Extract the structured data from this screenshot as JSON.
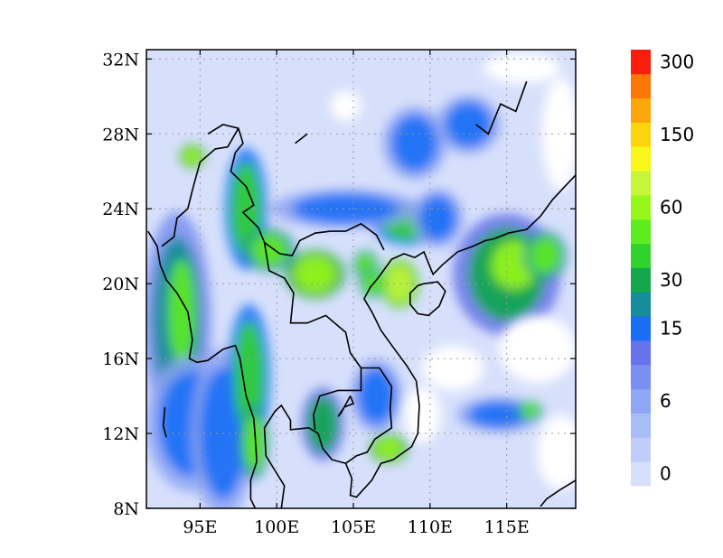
{
  "map": {
    "lon_range": [
      91.5,
      119.5
    ],
    "lat_range": [
      8,
      32.5
    ],
    "lon_ticks": [
      {
        "value": 95,
        "label": "95E"
      },
      {
        "value": 100,
        "label": "100E"
      },
      {
        "value": 105,
        "label": "105E"
      },
      {
        "value": 110,
        "label": "110E"
      },
      {
        "value": 115,
        "label": "115E"
      }
    ],
    "lat_ticks": [
      {
        "value": 8,
        "label": "8N"
      },
      {
        "value": 12,
        "label": "12N"
      },
      {
        "value": 16,
        "label": "16N"
      },
      {
        "value": 20,
        "label": "20N"
      },
      {
        "value": 24,
        "label": "24N"
      },
      {
        "value": 28,
        "label": "28N"
      },
      {
        "value": 32,
        "label": "32N"
      }
    ],
    "grid": "dotted",
    "fill_color_background": "#ffffff"
  },
  "colorbar": {
    "colors": [
      "#d7e0fb",
      "#c0cdf8",
      "#a8bcf6",
      "#8ea6f3",
      "#7a8ff0",
      "#6673ea",
      "#1a6ef6",
      "#168d9a",
      "#13a84c",
      "#30d22c",
      "#5fec1e",
      "#98f71a",
      "#c6f53a",
      "#f7f81a",
      "#fbd40c",
      "#fba60a",
      "#fb7806",
      "#fb1d0c"
    ],
    "labels": [
      {
        "index": 0,
        "text": "0"
      },
      {
        "index": 3,
        "text": "6"
      },
      {
        "index": 6,
        "text": "15"
      },
      {
        "index": 8,
        "text": "30"
      },
      {
        "index": 11,
        "text": "60"
      },
      {
        "index": 14,
        "text": "150"
      },
      {
        "index": 17,
        "text": "300"
      }
    ]
  },
  "precip_blobs": [
    {
      "lon": 93.5,
      "lat": 18,
      "rx": 1.6,
      "ry": 4.5,
      "level": 7
    },
    {
      "lon": 93.8,
      "lat": 18.5,
      "rx": 0.9,
      "ry": 2.8,
      "level": 10
    },
    {
      "lon": 94.5,
      "lat": 12.5,
      "rx": 2.2,
      "ry": 2.8,
      "level": 6
    },
    {
      "lon": 96.5,
      "lat": 12,
      "rx": 1.5,
      "ry": 3.5,
      "level": 6
    },
    {
      "lon": 98.2,
      "lat": 15,
      "rx": 1.0,
      "ry": 3.0,
      "level": 9
    },
    {
      "lon": 98.5,
      "lat": 11.5,
      "rx": 0.7,
      "ry": 1.5,
      "level": 10
    },
    {
      "lon": 94.5,
      "lat": 26.8,
      "rx": 0.6,
      "ry": 0.5,
      "level": 11
    },
    {
      "lon": 98,
      "lat": 24,
      "rx": 1.0,
      "ry": 2.5,
      "level": 9
    },
    {
      "lon": 99.5,
      "lat": 21.8,
      "rx": 1.2,
      "ry": 0.9,
      "level": 10
    },
    {
      "lon": 102.5,
      "lat": 20.5,
      "rx": 1.4,
      "ry": 1.0,
      "level": 11
    },
    {
      "lon": 105.8,
      "lat": 21,
      "rx": 0.6,
      "ry": 0.6,
      "level": 10
    },
    {
      "lon": 106.2,
      "lat": 20.0,
      "rx": 0.6,
      "ry": 0.6,
      "level": 10
    },
    {
      "lon": 108.5,
      "lat": 23.2,
      "rx": 1.6,
      "ry": 0.9,
      "level": 9
    },
    {
      "lon": 108.0,
      "lat": 20.0,
      "rx": 0.9,
      "ry": 1.0,
      "level": 12
    },
    {
      "lon": 110.5,
      "lat": 23.5,
      "rx": 1.2,
      "ry": 1.2,
      "level": 6
    },
    {
      "lon": 115,
      "lat": 20.5,
      "rx": 2.5,
      "ry": 2.5,
      "level": 8
    },
    {
      "lon": 115.5,
      "lat": 21.0,
      "rx": 1.5,
      "ry": 1.3,
      "level": 11
    },
    {
      "lon": 117.5,
      "lat": 21.5,
      "rx": 1.0,
      "ry": 1.0,
      "level": 10
    },
    {
      "lon": 114.5,
      "lat": 13.0,
      "rx": 2.0,
      "ry": 0.7,
      "level": 6
    },
    {
      "lon": 116.5,
      "lat": 13.2,
      "rx": 0.6,
      "ry": 0.4,
      "level": 10
    },
    {
      "lon": 103,
      "lat": 12.5,
      "rx": 1.0,
      "ry": 1.5,
      "level": 8
    },
    {
      "lon": 107.3,
      "lat": 11.2,
      "rx": 0.9,
      "ry": 0.6,
      "level": 11
    },
    {
      "lon": 106.5,
      "lat": 14,
      "rx": 1.2,
      "ry": 1.5,
      "level": 6
    },
    {
      "lon": 104.5,
      "lat": 24,
      "rx": 3.5,
      "ry": 0.8,
      "level": 6
    },
    {
      "lon": 109,
      "lat": 27.5,
      "rx": 1.5,
      "ry": 1.5,
      "level": 6
    },
    {
      "lon": 112.5,
      "lat": 28.5,
      "rx": 1.5,
      "ry": 1.2,
      "level": 6
    }
  ],
  "white_regions": [
    {
      "lon": 104.5,
      "lat": 29.5,
      "rx": 1.0,
      "ry": 0.8
    },
    {
      "lon": 111.5,
      "lat": 15.5,
      "rx": 2.0,
      "ry": 1.2
    },
    {
      "lon": 109.5,
      "lat": 13.0,
      "rx": 1.2,
      "ry": 1.5
    },
    {
      "lon": 117.0,
      "lat": 16.5,
      "rx": 2.5,
      "ry": 1.8
    },
    {
      "lon": 118.5,
      "lat": 11.0,
      "rx": 1.5,
      "ry": 2.0
    },
    {
      "lon": 118.5,
      "lat": 28.0,
      "rx": 1.2,
      "ry": 3.0
    },
    {
      "lon": 116.0,
      "lat": 31.5,
      "rx": 2.5,
      "ry": 0.8
    }
  ]
}
